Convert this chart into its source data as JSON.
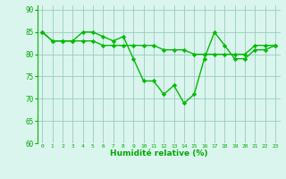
{
  "line1_x": [
    0,
    1,
    2,
    3,
    4,
    5,
    6,
    7,
    8,
    9,
    10,
    11,
    12,
    13,
    14,
    15,
    16,
    17,
    18,
    19,
    20,
    21,
    22,
    23
  ],
  "line1_y": [
    85,
    83,
    83,
    83,
    85,
    85,
    84,
    83,
    84,
    79,
    74,
    74,
    71,
    73,
    69,
    71,
    79,
    85,
    82,
    79,
    79,
    81,
    81,
    82
  ],
  "line2_x": [
    0,
    1,
    2,
    3,
    4,
    5,
    6,
    7,
    8,
    9,
    10,
    11,
    12,
    13,
    14,
    15,
    16,
    17,
    18,
    19,
    20,
    21,
    22,
    23
  ],
  "line2_y": [
    85,
    83,
    83,
    83,
    83,
    83,
    82,
    82,
    82,
    82,
    82,
    82,
    81,
    81,
    81,
    80,
    80,
    80,
    80,
    80,
    80,
    82,
    82,
    82
  ],
  "xlabel": "Humidité relative (%)",
  "ylim": [
    60,
    91
  ],
  "xlim": [
    -0.5,
    23.5
  ],
  "yticks": [
    60,
    65,
    70,
    75,
    80,
    85,
    90
  ],
  "xticks": [
    0,
    1,
    2,
    3,
    4,
    5,
    6,
    7,
    8,
    9,
    10,
    11,
    12,
    13,
    14,
    15,
    16,
    17,
    18,
    19,
    20,
    21,
    22,
    23
  ],
  "line_color": "#00bb00",
  "bg_color": "#daf5ee",
  "grid_color": "#99ccbb",
  "tick_color": "#00aa00",
  "label_color": "#00aa00",
  "marker": "D",
  "marker_size": 2.2,
  "linewidth": 1.0
}
